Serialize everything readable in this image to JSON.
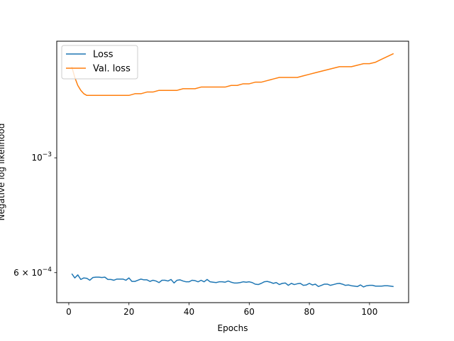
{
  "chart_data": {
    "type": "line",
    "xlabel": "Epochs",
    "ylabel": "Negative log likelihood",
    "y_scale": "log",
    "xlim": [
      -4,
      113
    ],
    "ylim": [
      0.000525,
      0.00168
    ],
    "x_ticks": [
      0,
      20,
      40,
      60,
      80,
      100
    ],
    "y_ticks": [
      {
        "value": 0.001,
        "label_base": "10",
        "label_exp": "−3"
      },
      {
        "value": 0.0006,
        "label_base": "6 × 10",
        "label_exp": "−4"
      }
    ],
    "grid": false,
    "legend_position": "top-left",
    "series": [
      {
        "name": "Loss",
        "color": "#1f77b4",
        "x": [
          1,
          2,
          3,
          4,
          5,
          6,
          7,
          8,
          9,
          10,
          11,
          12,
          13,
          14,
          15,
          16,
          17,
          18,
          19,
          20,
          21,
          22,
          23,
          24,
          25,
          26,
          27,
          28,
          29,
          30,
          31,
          32,
          33,
          34,
          35,
          36,
          37,
          38,
          39,
          40,
          41,
          42,
          43,
          44,
          45,
          46,
          47,
          48,
          49,
          50,
          51,
          52,
          53,
          54,
          55,
          56,
          57,
          58,
          59,
          60,
          61,
          62,
          63,
          64,
          65,
          66,
          67,
          68,
          69,
          70,
          71,
          72,
          73,
          74,
          75,
          76,
          77,
          78,
          79,
          80,
          81,
          82,
          83,
          84,
          85,
          86,
          87,
          88,
          89,
          90,
          91,
          92,
          93,
          94,
          95,
          96,
          97,
          98,
          99,
          100,
          101,
          102,
          103,
          104,
          105,
          106,
          107,
          108
        ],
        "values": [
          0.000597,
          0.000586,
          0.000594,
          0.000582,
          0.000586,
          0.000585,
          0.00058,
          0.000587,
          0.000588,
          0.000588,
          0.000587,
          0.000588,
          0.000582,
          0.000582,
          0.00058,
          0.000583,
          0.000583,
          0.000583,
          0.00058,
          0.000586,
          0.000577,
          0.000577,
          0.00058,
          0.000583,
          0.000581,
          0.000581,
          0.000577,
          0.00058,
          0.000578,
          0.000574,
          0.00058,
          0.00058,
          0.000578,
          0.000582,
          0.000573,
          0.00058,
          0.000581,
          0.000578,
          0.000576,
          0.000576,
          0.00058,
          0.000579,
          0.000576,
          0.00058,
          0.000576,
          0.000582,
          0.000576,
          0.000575,
          0.000574,
          0.000576,
          0.000576,
          0.000575,
          0.000578,
          0.000575,
          0.000573,
          0.000573,
          0.000574,
          0.000576,
          0.000575,
          0.000576,
          0.000574,
          0.00057,
          0.000569,
          0.000572,
          0.000576,
          0.000577,
          0.000575,
          0.000572,
          0.000574,
          0.000569,
          0.000572,
          0.000573,
          0.000567,
          0.000572,
          0.000569,
          0.000571,
          0.000572,
          0.000567,
          0.000568,
          0.000572,
          0.000568,
          0.00057,
          0.000564,
          0.000567,
          0.00057,
          0.00057,
          0.000567,
          0.000569,
          0.000571,
          0.000572,
          0.00057,
          0.000567,
          0.000568,
          0.000566,
          0.000565,
          0.000564,
          0.000568,
          0.000563,
          0.000566,
          0.000567,
          0.000567,
          0.000565,
          0.000565,
          0.000565,
          0.000566,
          0.000566,
          0.000565,
          0.000564
        ]
      },
      {
        "name": "Val. loss",
        "color": "#ff7f0e",
        "x": [
          1,
          2,
          3,
          4,
          5,
          6,
          7,
          8,
          10,
          12,
          14,
          16,
          18,
          20,
          22,
          24,
          26,
          28,
          30,
          32,
          34,
          36,
          38,
          40,
          42,
          44,
          46,
          48,
          50,
          52,
          54,
          56,
          58,
          60,
          62,
          64,
          66,
          68,
          70,
          72,
          74,
          76,
          78,
          80,
          82,
          84,
          86,
          88,
          90,
          92,
          94,
          96,
          98,
          100,
          102,
          104,
          106,
          108
        ],
        "values": [
          0.0015,
          0.00143,
          0.00138,
          0.00135,
          0.00133,
          0.00132,
          0.00132,
          0.00132,
          0.00132,
          0.00132,
          0.00132,
          0.00132,
          0.00132,
          0.00132,
          0.00133,
          0.00133,
          0.00134,
          0.00134,
          0.00135,
          0.00135,
          0.00135,
          0.00135,
          0.00136,
          0.00136,
          0.00136,
          0.00137,
          0.00137,
          0.00137,
          0.00137,
          0.00137,
          0.00138,
          0.00138,
          0.00139,
          0.00139,
          0.0014,
          0.0014,
          0.00141,
          0.00142,
          0.00143,
          0.00143,
          0.00143,
          0.00143,
          0.00144,
          0.00145,
          0.00146,
          0.00147,
          0.00148,
          0.00149,
          0.0015,
          0.0015,
          0.0015,
          0.00151,
          0.00152,
          0.00152,
          0.00153,
          0.00155,
          0.00157,
          0.00159
        ]
      }
    ]
  }
}
